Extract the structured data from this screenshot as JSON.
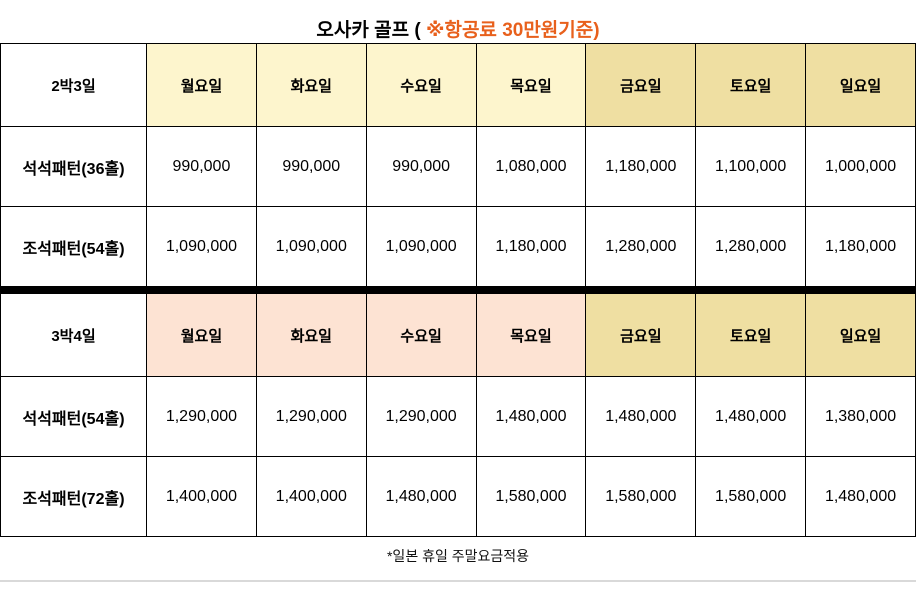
{
  "title": {
    "text": "오사카 골프 ( ",
    "highlight": "※항공료 30만원기준)",
    "highlight_color": "#e8601c"
  },
  "tables": [
    {
      "label": "2박3일",
      "weekday_bg": "#fdf5cd",
      "weekend_bg": "#efdfa2",
      "days": [
        "월요일",
        "화요일",
        "수요일",
        "목요일",
        "금요일",
        "토요일",
        "일요일"
      ],
      "rows": [
        {
          "label": "석석패턴(36홀)",
          "values": [
            "990,000",
            "990,000",
            "990,000",
            "1,080,000",
            "1,180,000",
            "1,100,000",
            "1,000,000"
          ]
        },
        {
          "label": "조석패턴(54홀)",
          "values": [
            "1,090,000",
            "1,090,000",
            "1,090,000",
            "1,180,000",
            "1,280,000",
            "1,280,000",
            "1,180,000"
          ]
        }
      ]
    },
    {
      "label": "3박4일",
      "weekday_bg": "#fde3d3",
      "weekend_bg": "#efdfa2",
      "days": [
        "월요일",
        "화요일",
        "수요일",
        "목요일",
        "금요일",
        "토요일",
        "일요일"
      ],
      "rows": [
        {
          "label": "석석패턴(54홀)",
          "values": [
            "1,290,000",
            "1,290,000",
            "1,290,000",
            "1,480,000",
            "1,480,000",
            "1,480,000",
            "1,380,000"
          ]
        },
        {
          "label": "조석패턴(72홀)",
          "values": [
            "1,400,000",
            "1,400,000",
            "1,480,000",
            "1,580,000",
            "1,580,000",
            "1,580,000",
            "1,480,000"
          ]
        }
      ]
    }
  ],
  "footnote": "*일본 휴일 주말요금적용"
}
